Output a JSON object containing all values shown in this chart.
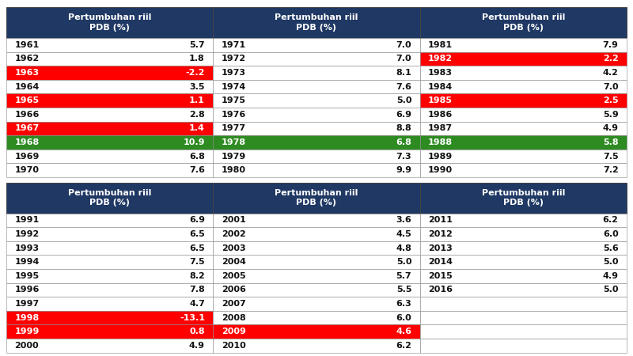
{
  "header_color": "#1F3864",
  "header_text_color": "#FFFFFF",
  "bg_red": "#FF0000",
  "bg_green": "#2E8B22",
  "bg_white": "#FFFFFF",
  "border_color": "#888888",
  "table1": {
    "col1": {
      "years": [
        "1961",
        "1962",
        "1963",
        "1964",
        "1965",
        "1966",
        "1967",
        "1968",
        "1969",
        "1970"
      ],
      "values": [
        "5.7",
        "1.8",
        "-2.2",
        "3.5",
        "1.1",
        "2.8",
        "1.4",
        "10.9",
        "6.8",
        "7.6"
      ],
      "row_bg": [
        "white",
        "white",
        "red",
        "white",
        "red",
        "white",
        "red",
        "green",
        "white",
        "white"
      ]
    },
    "col2": {
      "years": [
        "1971",
        "1972",
        "1973",
        "1974",
        "1975",
        "1976",
        "1977",
        "1978",
        "1979",
        "1980"
      ],
      "values": [
        "7.0",
        "7.0",
        "8.1",
        "7.6",
        "5.0",
        "6.9",
        "8.8",
        "6.8",
        "7.3",
        "9.9"
      ],
      "row_bg": [
        "white",
        "white",
        "white",
        "white",
        "white",
        "white",
        "white",
        "green",
        "white",
        "white"
      ]
    },
    "col3": {
      "years": [
        "1981",
        "1982",
        "1983",
        "1984",
        "1985",
        "1986",
        "1987",
        "1988",
        "1989",
        "1990"
      ],
      "values": [
        "7.9",
        "2.2",
        "4.2",
        "7.0",
        "2.5",
        "5.9",
        "4.9",
        "5.8",
        "7.5",
        "7.2"
      ],
      "row_bg": [
        "white",
        "red",
        "white",
        "white",
        "red",
        "white",
        "white",
        "green",
        "white",
        "white"
      ]
    }
  },
  "table2": {
    "col1": {
      "years": [
        "1991",
        "1992",
        "1993",
        "1994",
        "1995",
        "1996",
        "1997",
        "1998",
        "1999",
        "2000"
      ],
      "values": [
        "6.9",
        "6.5",
        "6.5",
        "7.5",
        "8.2",
        "7.8",
        "4.7",
        "-13.1",
        "0.8",
        "4.9"
      ],
      "row_bg": [
        "white",
        "white",
        "white",
        "white",
        "white",
        "white",
        "white",
        "red",
        "red",
        "white"
      ]
    },
    "col2": {
      "years": [
        "2001",
        "2002",
        "2003",
        "2004",
        "2005",
        "2006",
        "2007",
        "2008",
        "2009",
        "2010"
      ],
      "values": [
        "3.6",
        "4.5",
        "4.8",
        "5.0",
        "5.7",
        "5.5",
        "6.3",
        "6.0",
        "4.6",
        "6.2"
      ],
      "row_bg": [
        "white",
        "white",
        "white",
        "white",
        "white",
        "white",
        "white",
        "white",
        "red",
        "white"
      ]
    },
    "col3": {
      "years": [
        "2011",
        "2012",
        "2013",
        "2014",
        "2015",
        "2016",
        "",
        "",
        "",
        ""
      ],
      "values": [
        "6.2",
        "6.0",
        "5.6",
        "5.0",
        "4.9",
        "5.0",
        "",
        "",
        "",
        ""
      ],
      "row_bg": [
        "white",
        "white",
        "white",
        "white",
        "white",
        "white",
        "none",
        "none",
        "none",
        "none"
      ]
    }
  },
  "figsize": [
    8.0,
    4.5
  ],
  "dpi": 100,
  "header_label_line1": "Pertumbuhan riil",
  "header_label_line2": "PDB (%)"
}
